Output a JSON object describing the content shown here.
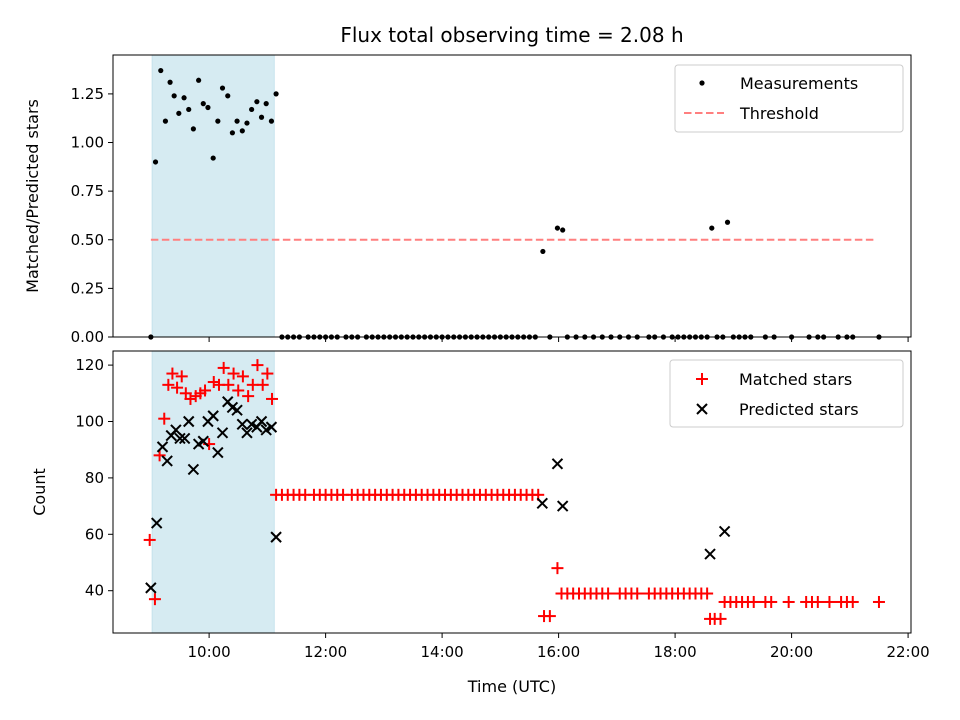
{
  "chart_data": [
    {
      "type": "scatter",
      "title": "Flux total observing time = 2.08 h",
      "ylabel": "Matched/Predicted stars",
      "xlabel": "",
      "xlim_hours": [
        8.35,
        22.05
      ],
      "ylim": [
        0,
        1.45
      ],
      "xtick_labels": [
        "10:00",
        "12:00",
        "14:00",
        "16:00",
        "18:00",
        "20:00",
        "22:00"
      ],
      "ytick_labels": [
        "0.00",
        "0.25",
        "0.50",
        "0.75",
        "1.00",
        "1.25"
      ],
      "shaded_span_hours": [
        9.02,
        11.12
      ],
      "threshold": {
        "value": 0.5,
        "x_range_hours": [
          9.0,
          21.45
        ]
      },
      "legend": [
        "Measurements",
        "Threshold"
      ],
      "series": [
        {
          "name": "Measurements",
          "x_hours": [
            9.0,
            9.08,
            9.17,
            9.25,
            9.33,
            9.4,
            9.48,
            9.57,
            9.65,
            9.73,
            9.82,
            9.9,
            9.98,
            10.07,
            10.15,
            10.23,
            10.32,
            10.4,
            10.48,
            10.57,
            10.65,
            10.73,
            10.82,
            10.9,
            10.98,
            11.07,
            11.15,
            11.25,
            11.35,
            11.45,
            11.55,
            11.7,
            11.8,
            11.9,
            12.0,
            12.1,
            12.2,
            12.35,
            12.45,
            12.55,
            12.7,
            12.8,
            12.9,
            13.0,
            13.1,
            13.2,
            13.3,
            13.4,
            13.5,
            13.6,
            13.7,
            13.8,
            13.9,
            14.0,
            14.1,
            14.2,
            14.3,
            14.4,
            14.5,
            14.6,
            14.7,
            14.8,
            14.9,
            15.0,
            15.1,
            15.2,
            15.3,
            15.4,
            15.5,
            15.6,
            15.73,
            15.85,
            15.98,
            16.07,
            16.15,
            16.3,
            16.45,
            16.6,
            16.75,
            16.9,
            17.05,
            17.2,
            17.35,
            17.55,
            17.65,
            17.8,
            17.95,
            18.05,
            18.15,
            18.25,
            18.35,
            18.45,
            18.55,
            18.63,
            18.72,
            18.82,
            18.9,
            19.0,
            19.1,
            19.2,
            19.3,
            19.55,
            19.7,
            20.0,
            20.3,
            20.45,
            20.55,
            20.8,
            20.95,
            21.05,
            21.5
          ],
          "values": [
            0.0,
            0.9,
            1.37,
            1.11,
            1.31,
            1.24,
            1.15,
            1.23,
            1.17,
            1.07,
            1.32,
            1.2,
            1.18,
            0.92,
            1.11,
            1.28,
            1.24,
            1.05,
            1.11,
            1.06,
            1.1,
            1.17,
            1.21,
            1.13,
            1.2,
            1.11,
            1.25,
            0.0,
            0.0,
            0.0,
            0.0,
            0.0,
            0.0,
            0.0,
            0.0,
            0.0,
            0.0,
            0.0,
            0.0,
            0.0,
            0.0,
            0.0,
            0.0,
            0.0,
            0.0,
            0.0,
            0.0,
            0.0,
            0.0,
            0.0,
            0.0,
            0.0,
            0.0,
            0.0,
            0.0,
            0.0,
            0.0,
            0.0,
            0.0,
            0.0,
            0.0,
            0.0,
            0.0,
            0.0,
            0.0,
            0.0,
            0.0,
            0.0,
            0.0,
            0.0,
            0.44,
            0.0,
            0.56,
            0.55,
            0.0,
            0.0,
            0.0,
            0.0,
            0.0,
            0.0,
            0.0,
            0.0,
            0.0,
            0.0,
            0.0,
            0.0,
            0.0,
            0.0,
            0.0,
            0.0,
            0.0,
            0.0,
            0.0,
            0.56,
            0.0,
            0.0,
            0.59,
            0.0,
            0.0,
            0.0,
            0.0,
            0.0,
            0.0,
            0.0,
            0.0,
            0.0,
            0.0,
            0.0,
            0.0,
            0.0,
            0.0
          ]
        }
      ]
    },
    {
      "type": "scatter",
      "title": "",
      "ylabel": "Count",
      "xlabel": "Time (UTC)",
      "xlim_hours": [
        8.35,
        22.05
      ],
      "ylim": [
        25,
        125
      ],
      "xtick_labels": [
        "10:00",
        "12:00",
        "14:00",
        "16:00",
        "18:00",
        "20:00",
        "22:00"
      ],
      "ytick_labels": [
        "40",
        "60",
        "80",
        "100",
        "120"
      ],
      "shaded_span_hours": [
        9.02,
        11.12
      ],
      "legend": [
        "Matched stars",
        "Predicted stars"
      ],
      "series": [
        {
          "name": "Matched stars",
          "x_hours": [
            8.98,
            9.07,
            9.15,
            9.23,
            9.3,
            9.37,
            9.45,
            9.53,
            9.6,
            9.68,
            9.77,
            9.85,
            9.93,
            10.0,
            10.08,
            10.17,
            10.25,
            10.33,
            10.42,
            10.5,
            10.58,
            10.67,
            10.75,
            10.83,
            10.92,
            11.0,
            11.08,
            11.15,
            11.25,
            11.35,
            11.45,
            11.55,
            11.65,
            11.8,
            11.9,
            12.0,
            12.1,
            12.2,
            12.3,
            12.45,
            12.55,
            12.65,
            12.75,
            12.85,
            12.95,
            13.05,
            13.15,
            13.25,
            13.35,
            13.45,
            13.55,
            13.65,
            13.75,
            13.85,
            13.95,
            14.05,
            14.15,
            14.25,
            14.35,
            14.45,
            14.55,
            14.65,
            14.75,
            14.85,
            14.95,
            15.05,
            15.15,
            15.25,
            15.35,
            15.45,
            15.55,
            15.65,
            15.75,
            15.85,
            15.98,
            16.05,
            16.15,
            16.25,
            16.35,
            16.45,
            16.55,
            16.65,
            16.75,
            16.85,
            17.05,
            17.15,
            17.25,
            17.35,
            17.55,
            17.65,
            17.75,
            17.85,
            17.95,
            18.05,
            18.15,
            18.25,
            18.35,
            18.45,
            18.55,
            18.6,
            18.68,
            18.78,
            18.85,
            18.95,
            19.05,
            19.15,
            19.25,
            19.35,
            19.55,
            19.65,
            19.95,
            20.25,
            20.35,
            20.45,
            20.65,
            20.85,
            20.95,
            21.05,
            21.5
          ],
          "values": [
            58,
            37,
            88,
            101,
            113,
            117,
            112,
            116,
            110,
            108,
            109,
            110,
            111,
            92,
            114,
            113,
            119,
            113,
            117,
            111,
            116,
            109,
            113,
            120,
            113,
            117,
            108,
            74,
            74,
            74,
            74,
            74,
            74,
            74,
            74,
            74,
            74,
            74,
            74,
            74,
            74,
            74,
            74,
            74,
            74,
            74,
            74,
            74,
            74,
            74,
            74,
            74,
            74,
            74,
            74,
            74,
            74,
            74,
            74,
            74,
            74,
            74,
            74,
            74,
            74,
            74,
            74,
            74,
            74,
            74,
            74,
            74,
            31,
            31,
            48,
            39,
            39,
            39,
            39,
            39,
            39,
            39,
            39,
            39,
            39,
            39,
            39,
            39,
            39,
            39,
            39,
            39,
            39,
            39,
            39,
            39,
            39,
            39,
            39,
            30,
            30,
            30,
            36,
            36,
            36,
            36,
            36,
            36,
            36,
            36,
            36,
            36,
            36,
            36,
            36,
            36,
            36,
            36,
            36
          ]
        },
        {
          "name": "Predicted stars",
          "x_hours": [
            9.0,
            9.1,
            9.2,
            9.28,
            9.35,
            9.43,
            9.5,
            9.58,
            9.65,
            9.73,
            9.82,
            9.9,
            9.98,
            10.07,
            10.15,
            10.23,
            10.32,
            10.4,
            10.48,
            10.57,
            10.65,
            10.73,
            10.82,
            10.9,
            10.98,
            11.07,
            11.15,
            15.72,
            15.98,
            16.07,
            18.6,
            18.85
          ],
          "values": [
            41,
            64,
            91,
            86,
            95,
            97,
            94,
            94,
            100,
            83,
            92,
            93,
            100,
            102,
            89,
            96,
            107,
            105,
            104,
            99,
            96,
            99,
            98,
            100,
            97,
            98,
            59,
            71,
            85,
            70,
            53,
            61
          ]
        }
      ]
    }
  ]
}
